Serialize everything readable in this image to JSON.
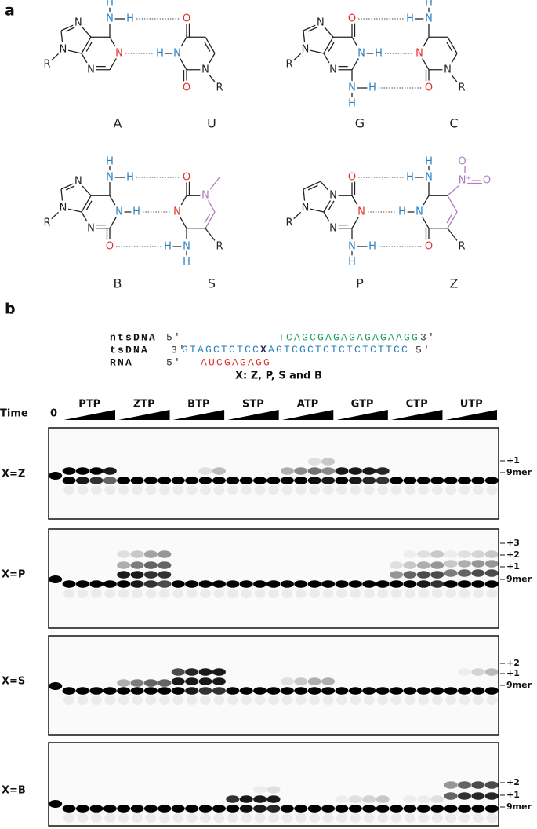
{
  "panel_a": {
    "label": "a",
    "pairs": [
      {
        "left": "A",
        "right": "U",
        "atoms": [
          "N",
          "H",
          "H",
          "N",
          "N",
          "N",
          "N",
          "R",
          "O",
          "H",
          "N",
          "O",
          "N",
          "R"
        ]
      },
      {
        "left": "G",
        "right": "C",
        "atoms": [
          "O",
          "N",
          "H",
          "N",
          "H",
          "H",
          "N",
          "N",
          "N",
          "R",
          "H",
          "N",
          "H",
          "N",
          "O",
          "N",
          "R"
        ]
      },
      {
        "left": "B",
        "right": "S",
        "atoms": [
          "N",
          "H",
          "H",
          "N",
          "H",
          "O",
          "N",
          "N",
          "N",
          "R",
          "O",
          "N",
          "H",
          "N",
          "H",
          "N",
          "R"
        ]
      },
      {
        "left": "P",
        "right": "Z",
        "atoms": [
          "O",
          "N",
          "N",
          "H",
          "H",
          "N",
          "N",
          "N",
          "R",
          "H",
          "N",
          "H",
          "H",
          "N",
          "O",
          "N⁺",
          "O⁻",
          "O",
          "R"
        ]
      }
    ]
  },
  "panel_b": {
    "label": "b",
    "nts": {
      "name": "ntsDNA",
      "end5": "5′",
      "seq": "TCAGCGAGAGAGAGAAGG",
      "end3": "3′"
    },
    "ts": {
      "name": "tsDNA",
      "end3": "3′",
      "seq_left": "GTAGCTCTCC",
      "x": "X",
      "seq_right": "AGTCGCTCTCTCTCTTCC",
      "end5": "5′"
    },
    "rna": {
      "name": "RNA",
      "end5": "5′",
      "seq": "AUCGAGAGG"
    },
    "legend": "X: Z, P, S and B",
    "time_label": "Time",
    "zero_label": "0",
    "groups": [
      "PTP",
      "ZTP",
      "BTP",
      "STP",
      "ATP",
      "GTP",
      "CTP",
      "UTP"
    ],
    "gels": [
      {
        "label": "X=Z",
        "markers": [
          "+1",
          "9mer"
        ]
      },
      {
        "label": "X=P",
        "markers": [
          "+3",
          "+2",
          "+1",
          "9mer"
        ]
      },
      {
        "label": "X=S",
        "markers": [
          "+2",
          "+1",
          "9mer"
        ]
      },
      {
        "label": "X=B",
        "markers": [
          "+2",
          "+1",
          "9mer"
        ]
      }
    ]
  }
}
